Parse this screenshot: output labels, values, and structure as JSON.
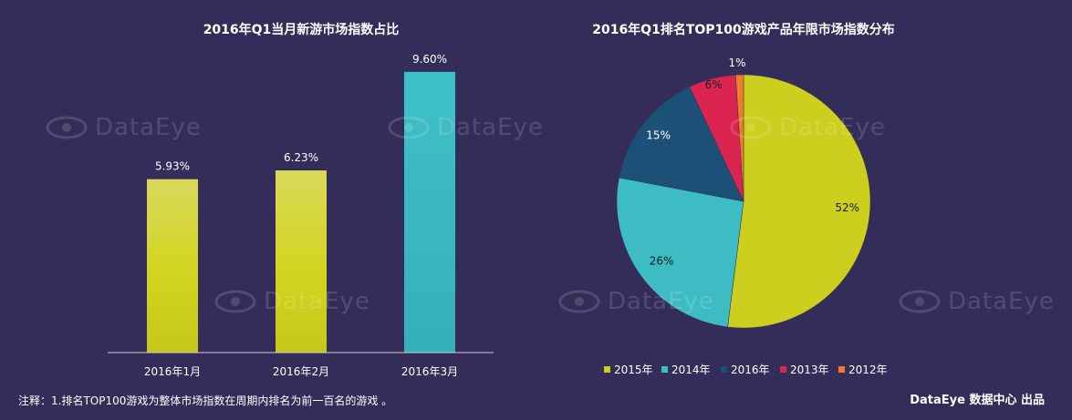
{
  "chart_data": [
    {
      "type": "bar",
      "title": "2016年Q1当月新游市场指数占比",
      "categories": [
        "2016年1月",
        "2016年2月",
        "2016年3月"
      ],
      "values": [
        5.93,
        6.23,
        9.6
      ],
      "labels": [
        "5.93%",
        "6.23%",
        "9.60%"
      ],
      "colors": [
        "#d4d53a",
        "#d4d53a",
        "#3dbcc4"
      ],
      "ylim": [
        0,
        10.5
      ],
      "grid": false
    },
    {
      "type": "pie",
      "title": "2016年Q1排名TOP100游戏产品年限市场指数分布",
      "categories": [
        "2015年",
        "2014年",
        "2016年",
        "2013年",
        "2012年"
      ],
      "values": [
        52,
        26,
        15,
        6,
        1
      ],
      "labels": [
        "52%",
        "26%",
        "15%",
        "6%",
        "1%"
      ],
      "colors": [
        "#cccf1e",
        "#3dbcc4",
        "#1c5077",
        "#dc2450",
        "#f07b2a"
      ],
      "legend_position": "bottom"
    }
  ],
  "watermark": "DataEye",
  "footer": {
    "note": "注释：1.排名TOP100游戏为整体市场指数在周期内排名为前一百名的游戏 。",
    "credit": "DataEye 数据中心 出品"
  }
}
